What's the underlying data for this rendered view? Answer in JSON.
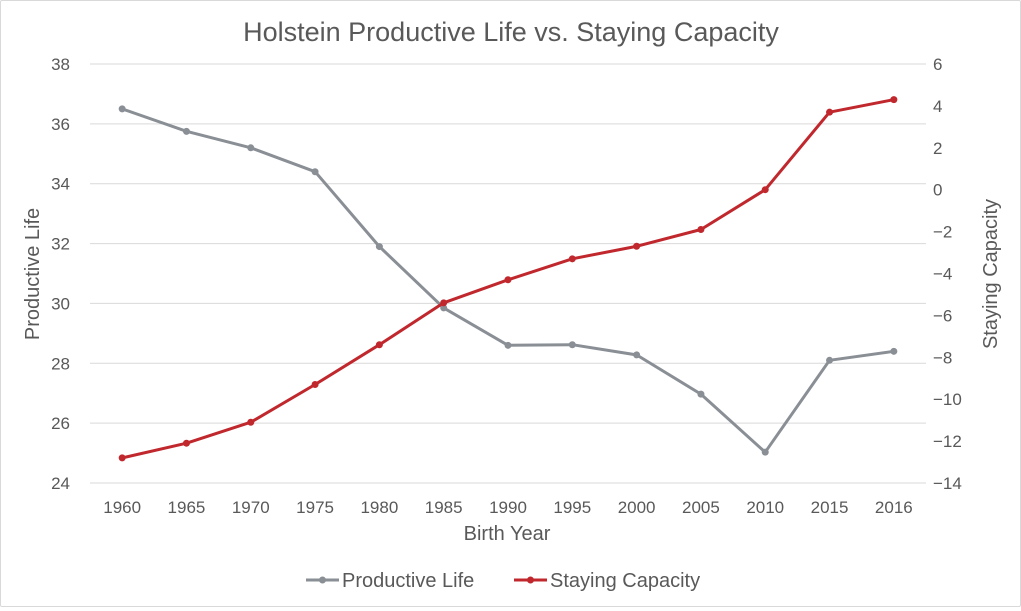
{
  "chart_data": {
    "type": "line",
    "title": "Holstein Productive Life vs. Staying Capacity",
    "xlabel": "Birth Year",
    "ylabel_left": "Productive Life",
    "ylabel_right": "Staying Capacity",
    "categories": [
      "1960",
      "1965",
      "1970",
      "1975",
      "1980",
      "1985",
      "1990",
      "1995",
      "2000",
      "2005",
      "2010",
      "2015",
      "2016"
    ],
    "y_left": {
      "min": 24,
      "max": 38,
      "step": 2,
      "ticks": [
        "24",
        "26",
        "28",
        "30",
        "32",
        "34",
        "36",
        "38"
      ]
    },
    "y_right": {
      "min": -14,
      "max": 6,
      "step": 2,
      "ticks": [
        "−14",
        "−12",
        "−10",
        "−8",
        "−6",
        "−4",
        "−2",
        "0",
        "2",
        "4",
        "6"
      ]
    },
    "grid": true,
    "legend": "bottom",
    "series": [
      {
        "name": "Productive Life",
        "axis": "left",
        "color": "#8a8f96",
        "values": [
          36.5,
          35.75,
          35.2,
          34.4,
          31.9,
          29.85,
          28.6,
          28.62,
          28.28,
          26.97,
          25.03,
          28.1,
          28.4
        ]
      },
      {
        "name": "Staying Capacity",
        "axis": "right",
        "color": "#c0282d",
        "values": [
          -12.8,
          -12.1,
          -11.1,
          -9.3,
          -7.4,
          -5.4,
          -4.3,
          -3.3,
          -2.7,
          -1.9,
          0.0,
          3.7,
          4.3
        ]
      }
    ]
  }
}
